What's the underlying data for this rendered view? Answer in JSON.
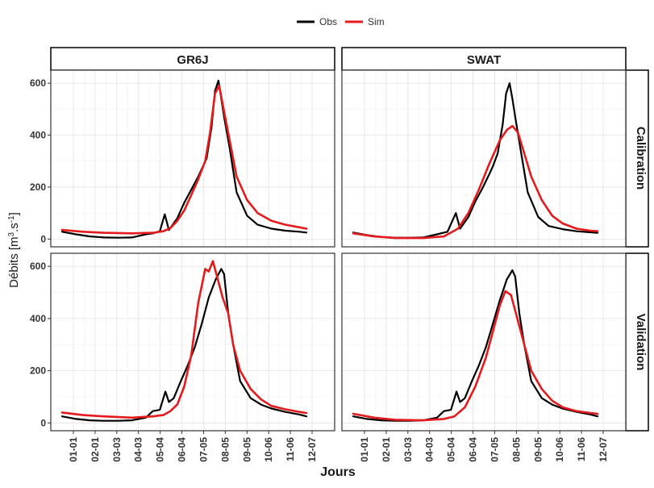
{
  "chart_data": {
    "type": "line",
    "facet_grid": true,
    "columns": [
      "GR6J",
      "SWAT"
    ],
    "rows": [
      "Calibration",
      "Validation"
    ],
    "xlabel": "Jours",
    "ylabel": "Débits [m3.s-1]",
    "x_ticks": [
      "01-01",
      "02-01",
      "03-03",
      "04-03",
      "05-04",
      "06-04",
      "07-05",
      "08-05",
      "09-05",
      "10-06",
      "11-06",
      "12-07"
    ],
    "x_range": [
      0,
      365
    ],
    "y_ticks": [
      0,
      200,
      400,
      600
    ],
    "ylim": [
      -30,
      650
    ],
    "grid": true,
    "legend": {
      "position": "top",
      "entries": [
        {
          "name": "Obs",
          "color": "#000000"
        },
        {
          "name": "Sim",
          "color": "#e41a1c"
        }
      ]
    },
    "panels": [
      {
        "column": "GR6J",
        "row": "Calibration",
        "series": [
          {
            "name": "Obs",
            "x": [
              0,
              20,
              40,
              60,
              80,
              100,
              120,
              130,
              140,
              147,
              153,
              165,
              175,
              185,
              195,
              200,
              207,
              214,
              219,
              224,
              228,
              232,
              240,
              250,
              265,
              280,
              300,
              320,
              340,
              350
            ],
            "y": [
              28,
              18,
              10,
              6,
              5,
              6,
              18,
              22,
              30,
              95,
              35,
              80,
              140,
              190,
              240,
              270,
              310,
              430,
              570,
              610,
              540,
              470,
              350,
              180,
              90,
              55,
              40,
              32,
              28,
              25
            ]
          },
          {
            "name": "Sim",
            "x": [
              0,
              30,
              60,
              100,
              130,
              145,
              155,
              165,
              175,
              185,
              195,
              205,
              212,
              219,
              225,
              232,
              240,
              250,
              265,
              280,
              300,
              320,
              340,
              350
            ],
            "y": [
              35,
              28,
              24,
              22,
              24,
              30,
              42,
              70,
              110,
              170,
              230,
              300,
              410,
              560,
              590,
              490,
              380,
              240,
              150,
              100,
              70,
              55,
              45,
              40
            ]
          }
        ]
      },
      {
        "column": "SWAT",
        "row": "Calibration",
        "series": [
          {
            "name": "Obs",
            "x": [
              0,
              20,
              40,
              60,
              80,
              100,
              120,
              135,
              147,
              153,
              165,
              175,
              185,
              195,
              200,
              207,
              214,
              219,
              224,
              228,
              232,
              240,
              250,
              265,
              280,
              300,
              320,
              340,
              350
            ],
            "y": [
              25,
              15,
              8,
              5,
              5,
              6,
              18,
              28,
              100,
              40,
              85,
              145,
              195,
              250,
              280,
              330,
              440,
              560,
              600,
              540,
              470,
              340,
              180,
              85,
              50,
              38,
              30,
              26,
              24
            ]
          },
          {
            "name": "Sim",
            "x": [
              0,
              30,
              60,
              100,
              130,
              150,
              165,
              180,
              195,
              210,
              220,
              228,
              236,
              245,
              255,
              270,
              285,
              300,
              320,
              340,
              350
            ],
            "y": [
              22,
              10,
              4,
              4,
              10,
              40,
              100,
              190,
              290,
              380,
              420,
              435,
              410,
              330,
              240,
              150,
              90,
              60,
              40,
              32,
              30
            ]
          }
        ]
      },
      {
        "column": "GR6J",
        "row": "Validation",
        "series": [
          {
            "name": "Obs",
            "x": [
              0,
              20,
              40,
              60,
              80,
              100,
              120,
              130,
              140,
              148,
              153,
              160,
              170,
              180,
              190,
              200,
              210,
              220,
              228,
              232,
              238,
              245,
              255,
              270,
              285,
              300,
              320,
              340,
              350
            ],
            "y": [
              25,
              15,
              10,
              8,
              8,
              10,
              20,
              45,
              50,
              120,
              80,
              95,
              160,
              220,
              290,
              380,
              480,
              550,
              590,
              570,
              420,
              300,
              160,
              95,
              70,
              55,
              42,
              32,
              25
            ]
          },
          {
            "name": "Sim",
            "x": [
              0,
              30,
              60,
              100,
              130,
              145,
              155,
              165,
              175,
              185,
              195,
              205,
              210,
              216,
              222,
              230,
              238,
              245,
              255,
              270,
              285,
              300,
              320,
              340,
              350
            ],
            "y": [
              40,
              30,
              25,
              20,
              25,
              30,
              45,
              70,
              140,
              260,
              460,
              590,
              580,
              620,
              560,
              480,
              420,
              300,
              200,
              130,
              90,
              65,
              52,
              42,
              38
            ]
          }
        ]
      },
      {
        "column": "SWAT",
        "row": "Validation",
        "series": [
          {
            "name": "Obs",
            "x": [
              0,
              20,
              40,
              60,
              80,
              100,
              120,
              130,
              140,
              148,
              153,
              160,
              170,
              180,
              190,
              200,
              210,
              220,
              228,
              232,
              238,
              245,
              255,
              270,
              285,
              300,
              320,
              340,
              350
            ],
            "y": [
              25,
              15,
              10,
              8,
              8,
              10,
              20,
              45,
              50,
              120,
              80,
              95,
              160,
              220,
              290,
              380,
              470,
              550,
              585,
              560,
              420,
              300,
              160,
              95,
              70,
              55,
              42,
              32,
              25
            ]
          },
          {
            "name": "Sim",
            "x": [
              0,
              30,
              60,
              100,
              130,
              145,
              160,
              175,
              190,
              200,
              210,
              218,
              226,
              235,
              245,
              255,
              270,
              285,
              300,
              320,
              340,
              350
            ],
            "y": [
              35,
              20,
              12,
              10,
              15,
              25,
              60,
              140,
              250,
              350,
              450,
              505,
              490,
              400,
              300,
              200,
              130,
              85,
              60,
              45,
              38,
              35
            ]
          }
        ]
      }
    ]
  }
}
